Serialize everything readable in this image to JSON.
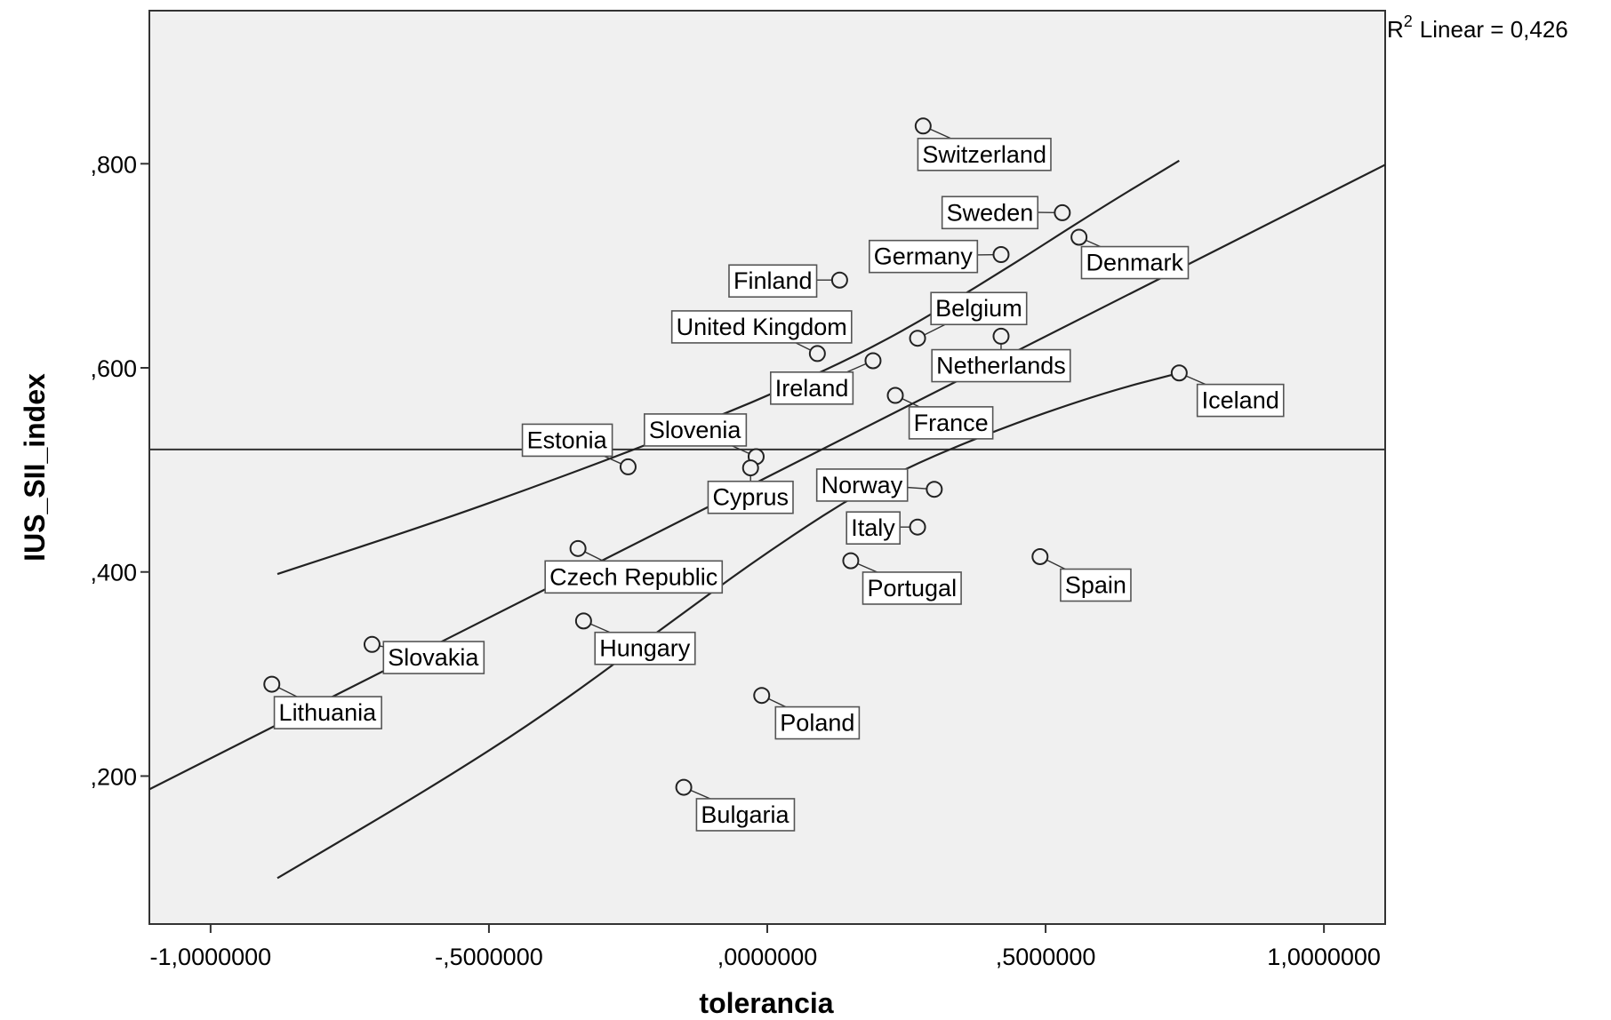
{
  "chart_data": {
    "type": "scatter",
    "title": "",
    "xlabel": "tolerancia",
    "ylabel": "IUS_SII_index",
    "xlim": [
      -1.11,
      1.11
    ],
    "ylim": [
      0.055,
      0.95
    ],
    "xticks": [
      {
        "value": -1.0,
        "label": "-1,0000000"
      },
      {
        "value": -0.5,
        "label": "-,5000000"
      },
      {
        "value": 0.0,
        "label": ",0000000"
      },
      {
        "value": 0.5,
        "label": ",5000000"
      },
      {
        "value": 1.0,
        "label": "1,0000000"
      }
    ],
    "yticks": [
      {
        "value": 0.2,
        "label": ",200"
      },
      {
        "value": 0.4,
        "label": ",400"
      },
      {
        "value": 0.6,
        "label": ",600"
      },
      {
        "value": 0.8,
        "label": ",800"
      }
    ],
    "r2_text": "Linear = 0,426",
    "reference_line_y": 0.52,
    "fit_line": {
      "x": [
        -1.11,
        1.11
      ],
      "y": [
        0.187,
        0.799
      ]
    },
    "upper_band": {
      "x": [
        -0.88,
        -0.6,
        -0.4,
        -0.2,
        0.0,
        0.2,
        0.4,
        0.6,
        0.74
      ],
      "y": [
        0.398,
        0.448,
        0.487,
        0.528,
        0.572,
        0.622,
        0.687,
        0.757,
        0.803
      ]
    },
    "lower_band": {
      "x": [
        -0.88,
        -0.6,
        -0.4,
        -0.2,
        0.0,
        0.2,
        0.4,
        0.6,
        0.74
      ],
      "y": [
        0.1,
        0.19,
        0.26,
        0.34,
        0.42,
        0.49,
        0.537,
        0.575,
        0.595
      ]
    },
    "points": [
      {
        "name": "Switzerland",
        "x": 0.28,
        "y": 0.837,
        "lx": 0.39,
        "ly": 0.81
      },
      {
        "name": "Sweden",
        "x": 0.53,
        "y": 0.752,
        "lx": 0.4,
        "ly": 0.753
      },
      {
        "name": "Denmark",
        "x": 0.56,
        "y": 0.728,
        "lx": 0.66,
        "ly": 0.704
      },
      {
        "name": "Germany",
        "x": 0.42,
        "y": 0.711,
        "lx": 0.28,
        "ly": 0.71
      },
      {
        "name": "Finland",
        "x": 0.13,
        "y": 0.686,
        "lx": 0.01,
        "ly": 0.686
      },
      {
        "name": "Belgium",
        "x": 0.27,
        "y": 0.629,
        "lx": 0.38,
        "ly": 0.659
      },
      {
        "name": "United Kingdom",
        "x": 0.09,
        "y": 0.614,
        "lx": -0.01,
        "ly": 0.641
      },
      {
        "name": "Netherlands",
        "x": 0.42,
        "y": 0.631,
        "lx": 0.42,
        "ly": 0.603
      },
      {
        "name": "Ireland",
        "x": 0.19,
        "y": 0.607,
        "lx": 0.08,
        "ly": 0.581
      },
      {
        "name": "Iceland",
        "x": 0.74,
        "y": 0.595,
        "lx": 0.85,
        "ly": 0.569
      },
      {
        "name": "France",
        "x": 0.23,
        "y": 0.573,
        "lx": 0.33,
        "ly": 0.547
      },
      {
        "name": "Estonia",
        "x": -0.25,
        "y": 0.503,
        "lx": -0.36,
        "ly": 0.53
      },
      {
        "name": "Slovenia",
        "x": -0.02,
        "y": 0.513,
        "lx": -0.13,
        "ly": 0.54
      },
      {
        "name": "Cyprus",
        "x": -0.03,
        "y": 0.502,
        "lx": -0.03,
        "ly": 0.474
      },
      {
        "name": "Norway",
        "x": 0.3,
        "y": 0.481,
        "lx": 0.17,
        "ly": 0.486
      },
      {
        "name": "Italy",
        "x": 0.27,
        "y": 0.444,
        "lx": 0.19,
        "ly": 0.444
      },
      {
        "name": "Czech Republic",
        "x": -0.34,
        "y": 0.423,
        "lx": -0.24,
        "ly": 0.396
      },
      {
        "name": "Spain",
        "x": 0.49,
        "y": 0.415,
        "lx": 0.59,
        "ly": 0.388
      },
      {
        "name": "Portugal",
        "x": 0.15,
        "y": 0.411,
        "lx": 0.26,
        "ly": 0.385
      },
      {
        "name": "Hungary",
        "x": -0.33,
        "y": 0.352,
        "lx": -0.22,
        "ly": 0.326
      },
      {
        "name": "Slovakia",
        "x": -0.71,
        "y": 0.329,
        "lx": -0.6,
        "ly": 0.317
      },
      {
        "name": "Lithuania",
        "x": -0.89,
        "y": 0.29,
        "lx": -0.79,
        "ly": 0.263
      },
      {
        "name": "Poland",
        "x": -0.01,
        "y": 0.279,
        "lx": 0.09,
        "ly": 0.253
      },
      {
        "name": "Bulgaria",
        "x": -0.15,
        "y": 0.189,
        "lx": -0.04,
        "ly": 0.163
      }
    ]
  }
}
